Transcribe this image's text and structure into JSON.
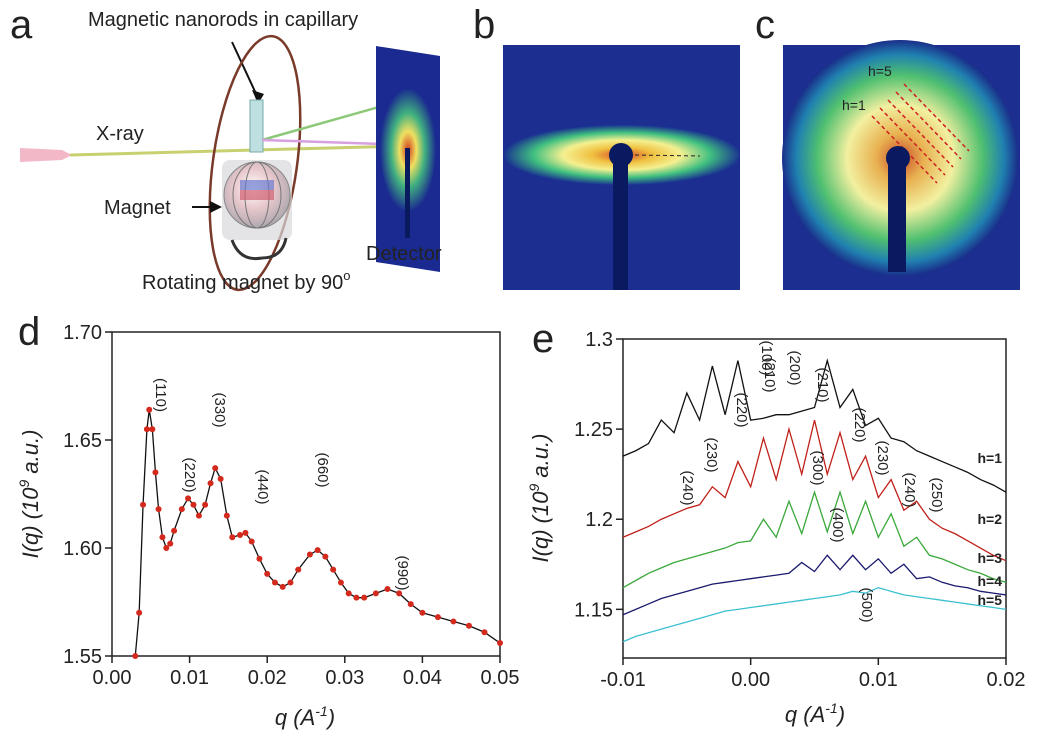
{
  "panels": {
    "a": {
      "label": "a",
      "capillary": "Magnetic nanorods in capillary",
      "xray": "X-ray",
      "magnet": "Magnet",
      "detector": "Detector",
      "rotate_text": "Rotating magnet by 90",
      "rotate_sup": "o"
    },
    "b": {
      "label": "b"
    },
    "c": {
      "label": "c",
      "h5": "h=5",
      "h1": "h=1"
    }
  },
  "chart_data": [
    {
      "type": "line",
      "label": "d",
      "markers": true,
      "x_label": {
        "text": "q (A",
        "sup": "-1",
        "tail": ")"
      },
      "y_label": {
        "text": "I(q) (10",
        "sup": "9",
        "tail": " a.u.)"
      },
      "xlim": [
        0,
        0.05
      ],
      "ylim": [
        1.55,
        1.7
      ],
      "xticks": [
        {
          "value": 0,
          "label": "0.00"
        },
        0.01,
        0.02,
        0.03,
        0.04,
        0.05
      ],
      "yticks": [
        1.55,
        {
          "value": 1.6,
          "label": "1.60"
        },
        1.65,
        {
          "value": 1.7,
          "label": "1.70"
        }
      ],
      "x": [
        0.003,
        0.0035,
        0.004,
        0.0045,
        0.0048,
        0.0052,
        0.0056,
        0.006,
        0.0065,
        0.007,
        0.0075,
        0.008,
        0.009,
        0.0098,
        0.0105,
        0.0112,
        0.012,
        0.0127,
        0.0133,
        0.014,
        0.0148,
        0.0155,
        0.0165,
        0.0172,
        0.018,
        0.019,
        0.02,
        0.021,
        0.022,
        0.023,
        0.024,
        0.0255,
        0.0265,
        0.0275,
        0.0285,
        0.0295,
        0.0305,
        0.0315,
        0.0325,
        0.034,
        0.0355,
        0.037,
        0.0385,
        0.04,
        0.042,
        0.044,
        0.046,
        0.048,
        0.05
      ],
      "series": [
        {
          "color": "#d42a1e",
          "values": [
            1.55,
            1.57,
            1.62,
            1.655,
            1.664,
            1.655,
            1.635,
            1.618,
            1.605,
            1.6,
            1.602,
            1.608,
            1.618,
            1.623,
            1.62,
            1.615,
            1.62,
            1.63,
            1.637,
            1.632,
            1.615,
            1.605,
            1.606,
            1.607,
            1.603,
            1.595,
            1.588,
            1.584,
            1.582,
            1.584,
            1.59,
            1.597,
            1.599,
            1.596,
            1.59,
            1.584,
            1.579,
            1.577,
            1.577,
            1.579,
            1.581,
            1.579,
            1.574,
            1.57,
            1.568,
            1.566,
            1.564,
            1.561,
            1.556
          ]
        }
      ],
      "annotations": [
        {
          "text": "(110)",
          "color": "#222222"
        },
        {
          "text": "(220)",
          "color": "#222222"
        },
        {
          "text": "(330)",
          "color": "#222222"
        },
        {
          "text": "(440)",
          "color": "#222222"
        },
        {
          "text": "(660)",
          "color": "#222222"
        },
        {
          "text": "(990)",
          "color": "#222222"
        }
      ]
    },
    {
      "type": "line",
      "label": "e",
      "markers": false,
      "x_label": {
        "text": "q (A",
        "sup": "-1",
        "tail": ")"
      },
      "y_label": {
        "text": "I(q) (10",
        "sup": "9",
        "tail": " a.u.)"
      },
      "xlim": [
        -0.01,
        0.02
      ],
      "ylim": [
        1.123,
        1.3
      ],
      "xticks": [
        -0.01,
        {
          "value": 0,
          "label": "0.00"
        },
        0.01,
        0.02
      ],
      "yticks": [
        1.15,
        1.2,
        1.25,
        1.3
      ],
      "x": [
        -0.01,
        -0.009,
        -0.008,
        -0.007,
        -0.006,
        -0.005,
        -0.004,
        -0.003,
        -0.002,
        -0.001,
        0.0,
        0.001,
        0.002,
        0.003,
        0.004,
        0.005,
        0.006,
        0.007,
        0.008,
        0.009,
        0.01,
        0.011,
        0.012,
        0.013,
        0.014,
        0.015,
        0.016,
        0.017,
        0.018,
        0.019,
        0.02
      ],
      "series": [
        {
          "name": "h=1",
          "color": "#111111",
          "values": [
            1.235,
            1.238,
            1.242,
            1.255,
            1.248,
            1.27,
            1.255,
            1.285,
            1.258,
            1.288,
            1.255,
            1.256,
            1.258,
            1.258,
            1.26,
            1.262,
            1.288,
            1.262,
            1.272,
            1.252,
            1.256,
            1.245,
            1.243,
            1.238,
            1.235,
            1.232,
            1.229,
            1.226,
            1.222,
            1.219,
            1.215
          ]
        },
        {
          "name": "h=2",
          "color": "#c0201a",
          "values": [
            1.19,
            1.193,
            1.196,
            1.2,
            1.203,
            1.206,
            1.208,
            1.218,
            1.212,
            1.232,
            1.218,
            1.245,
            1.222,
            1.25,
            1.225,
            1.255,
            1.225,
            1.248,
            1.222,
            1.235,
            1.212,
            1.222,
            1.205,
            1.21,
            1.2,
            1.195,
            1.192,
            1.188,
            1.184,
            1.18,
            1.177
          ]
        },
        {
          "name": "h=3",
          "color": "#3aa83a",
          "values": [
            1.162,
            1.166,
            1.17,
            1.173,
            1.176,
            1.178,
            1.18,
            1.182,
            1.184,
            1.187,
            1.188,
            1.2,
            1.19,
            1.21,
            1.192,
            1.215,
            1.193,
            1.215,
            1.192,
            1.21,
            1.19,
            1.203,
            1.185,
            1.19,
            1.18,
            1.178,
            1.175,
            1.172,
            1.17,
            1.167,
            1.165
          ]
        },
        {
          "name": "h=4",
          "color": "#1a1a6e",
          "values": [
            1.147,
            1.15,
            1.153,
            1.156,
            1.158,
            1.16,
            1.162,
            1.164,
            1.165,
            1.166,
            1.167,
            1.168,
            1.169,
            1.17,
            1.176,
            1.171,
            1.18,
            1.172,
            1.18,
            1.172,
            1.178,
            1.17,
            1.175,
            1.167,
            1.168,
            1.165,
            1.163,
            1.162,
            1.16,
            1.159,
            1.158
          ]
        },
        {
          "name": "h=5",
          "color": "#3cc0d0",
          "values": [
            1.132,
            1.135,
            1.137,
            1.139,
            1.141,
            1.143,
            1.145,
            1.147,
            1.149,
            1.15,
            1.151,
            1.152,
            1.153,
            1.154,
            1.155,
            1.156,
            1.157,
            1.158,
            1.16,
            1.159,
            1.162,
            1.16,
            1.158,
            1.157,
            1.156,
            1.155,
            1.154,
            1.153,
            1.152,
            1.151,
            1.15
          ]
        }
      ],
      "annotations": [
        {
          "text": "(100)",
          "color": "#111111"
        },
        {
          "text": "(240)",
          "color": "#c0201a"
        },
        {
          "text": "(230)",
          "color": "#c0201a"
        },
        {
          "text": "(220)",
          "color": "#c0201a"
        },
        {
          "text": "(210)",
          "color": "#c0201a"
        },
        {
          "text": "(200)",
          "color": "#c0201a"
        },
        {
          "text": "(210)",
          "color": "#c0201a"
        },
        {
          "text": "(220)",
          "color": "#c0201a"
        },
        {
          "text": "(230)",
          "color": "#c0201a"
        },
        {
          "text": "(240)",
          "color": "#c0201a"
        },
        {
          "text": "(250)",
          "color": "#c0201a"
        },
        {
          "text": "(300)",
          "color": "#3aa83a"
        },
        {
          "text": "(400)",
          "color": "#2a2aa8"
        },
        {
          "text": "(500)",
          "color": "#3cc0d0"
        }
      ]
    }
  ]
}
